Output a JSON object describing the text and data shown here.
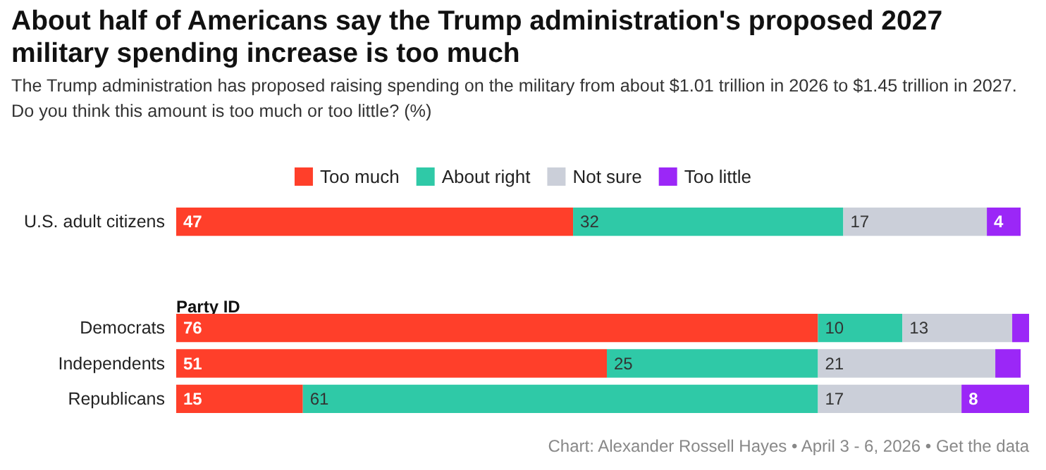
{
  "chart_data": {
    "type": "bar",
    "orientation": "horizontal",
    "stacked": true,
    "title": "About half of Americans say the Trump administration's proposed 2027 military spending increase is too much",
    "subtitle": "The Trump administration has proposed raising spending on the military from about $1.01 trillion in 2026 to $1.45 trillion in 2027. Do you think this amount is too much or too little? (%)",
    "categories": [
      "U.S. adult citizens",
      null,
      null,
      "Democrats",
      "Independents",
      "Republicans"
    ],
    "series": [
      {
        "name": "Too much",
        "color": "#ff3f2a",
        "values": [
          47,
          null,
          null,
          76,
          51,
          15
        ],
        "value_labels": [
          "47",
          null,
          null,
          "76",
          "51",
          "15"
        ]
      },
      {
        "name": "About right",
        "color": "#2fc9a7",
        "values": [
          32,
          null,
          null,
          10,
          25,
          61
        ],
        "value_labels": [
          "32",
          null,
          null,
          "10",
          "25",
          "61"
        ]
      },
      {
        "name": "Not sure",
        "color": "#cbcfd9",
        "values": [
          17,
          null,
          null,
          13,
          21,
          17
        ],
        "value_labels": [
          "17",
          null,
          null,
          "13",
          "21",
          "17"
        ]
      },
      {
        "name": "Too little",
        "color": "#9b27f7",
        "values": [
          4,
          null,
          null,
          2,
          3,
          8
        ],
        "value_labels": [
          "4",
          null,
          null,
          null,
          null,
          "8"
        ]
      }
    ],
    "legend": "top",
    "annotations": [
      {
        "text": "Party ID"
      },
      "Chart: Alexander Rossell Hayes • April 3 - 6, 2026 • Get the data"
    ]
  }
}
